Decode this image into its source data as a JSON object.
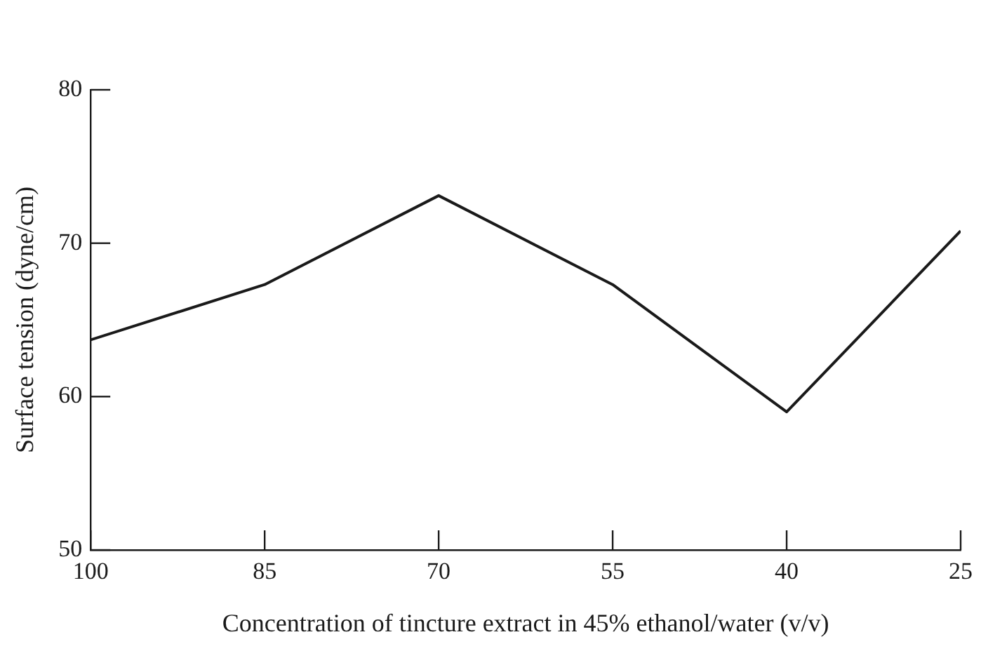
{
  "chart_data": {
    "type": "line",
    "xlabel": "Concentration of tincture extract in 45% ethanol/water (v/v)",
    "ylabel": "Surface tension (dyne/cm)",
    "x": [
      100,
      85,
      70,
      55,
      40,
      25
    ],
    "series": [
      {
        "color": "#1a1a1a",
        "values": [
          63.7,
          67.3,
          73.1,
          67.3,
          59.0,
          70.8
        ]
      }
    ],
    "xlim": [
      100,
      25
    ],
    "xticks": [
      100,
      85,
      70,
      55,
      40,
      25
    ],
    "ylim": [
      50,
      80
    ],
    "yticks": [
      50,
      60,
      70,
      80
    ],
    "grid": false,
    "legend": false,
    "marker": "none",
    "line_style": "solid"
  }
}
